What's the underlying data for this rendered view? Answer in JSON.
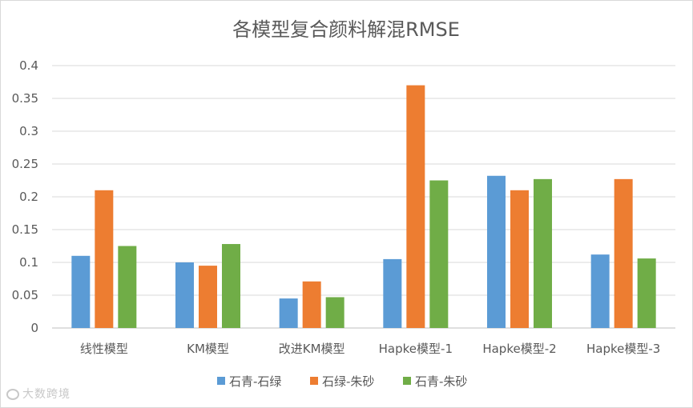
{
  "chart_data": {
    "type": "bar",
    "title": "各模型复合颜料解混RMSE",
    "xlabel": "",
    "ylabel": "",
    "categories": [
      "线性模型",
      "KM模型",
      "改进KM模型",
      "Hapke模型-1",
      "Hapke模型-2",
      "Hapke模型-3"
    ],
    "series": [
      {
        "name": "石青-石绿",
        "color": "#5b9bd5",
        "values": [
          0.11,
          0.1,
          0.045,
          0.105,
          0.232,
          0.112
        ]
      },
      {
        "name": "石绿-朱砂",
        "color": "#ed7d31",
        "values": [
          0.21,
          0.095,
          0.071,
          0.37,
          0.21,
          0.227
        ]
      },
      {
        "name": "石青-朱砂",
        "color": "#70ad47",
        "values": [
          0.125,
          0.128,
          0.047,
          0.225,
          0.227,
          0.106
        ]
      }
    ],
    "ylim": [
      0,
      0.4
    ],
    "yticks": [
      0,
      0.05,
      0.1,
      0.15,
      0.2,
      0.25,
      0.3,
      0.35,
      0.4
    ],
    "ytick_labels": [
      "0",
      "0.05",
      "0.1",
      "0.15",
      "0.2",
      "0.25",
      "0.3",
      "0.35",
      "0.4"
    ],
    "grid": true,
    "legend_position": "bottom"
  },
  "watermark": {
    "text": "大数跨境"
  }
}
